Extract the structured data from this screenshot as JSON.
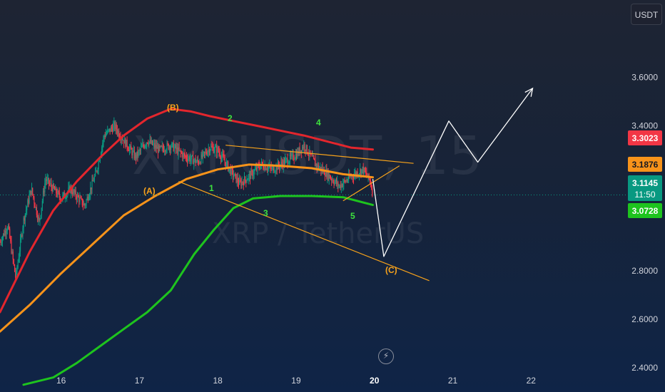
{
  "currency_button": "USDT",
  "watermark": {
    "ticker": "XRPUSDT, 15",
    "description": "XRP / TetherUS"
  },
  "flash_icon": "lightning-bolt-icon",
  "price_tags": {
    "red": {
      "label": "3.3023",
      "color": "#f23645"
    },
    "orange": {
      "label": "3.1876",
      "color": "#f7931a"
    },
    "current": {
      "label": "3.1145",
      "countdown": "11:50",
      "color": "#089981"
    },
    "green": {
      "label": "3.0728",
      "color": "#1ec41e"
    }
  },
  "wave_labels": [
    {
      "text": "(B)",
      "color": "#f7a21b"
    },
    {
      "text": "(A)",
      "color": "#f7a21b"
    },
    {
      "text": "(C)",
      "color": "#f7a21b"
    },
    {
      "text": "1",
      "color": "#3ee23e"
    },
    {
      "text": "2",
      "color": "#3ee23e"
    },
    {
      "text": "3",
      "color": "#3ee23e"
    },
    {
      "text": "4",
      "color": "#3ee23e"
    },
    {
      "text": "5",
      "color": "#3ee23e"
    }
  ],
  "chart_data": {
    "type": "candlestick",
    "title": "",
    "symbol": "XRPUSDT",
    "interval": "15",
    "ylim": [
      2.3,
      3.92
    ],
    "y_ticks": [
      "3.6000",
      "3.4000",
      "2.8000",
      "2.6000",
      "2.4000"
    ],
    "x_ticks": [
      {
        "label": "16",
        "day": 16,
        "bold": false
      },
      {
        "label": "17",
        "day": 17,
        "bold": false
      },
      {
        "label": "18",
        "day": 18,
        "bold": false
      },
      {
        "label": "19",
        "day": 19,
        "bold": false
      },
      {
        "label": "20",
        "day": 20,
        "bold": true
      },
      {
        "label": "21",
        "day": 21,
        "bold": false
      },
      {
        "label": "22",
        "day": 22,
        "bold": false
      }
    ],
    "xlim": [
      15.22,
      23.2
    ],
    "price_anchors": [
      [
        15.22,
        2.92
      ],
      [
        15.32,
        2.99
      ],
      [
        15.42,
        2.77
      ],
      [
        15.52,
        3.01
      ],
      [
        15.62,
        3.14
      ],
      [
        15.72,
        3.0
      ],
      [
        15.8,
        3.18
      ],
      [
        15.9,
        3.14
      ],
      [
        16.0,
        3.1
      ],
      [
        16.12,
        3.14
      ],
      [
        16.3,
        3.07
      ],
      [
        16.45,
        3.21
      ],
      [
        16.55,
        3.36
      ],
      [
        16.68,
        3.4
      ],
      [
        16.8,
        3.34
      ],
      [
        16.95,
        3.27
      ],
      [
        17.1,
        3.34
      ],
      [
        17.25,
        3.3
      ],
      [
        17.4,
        3.32
      ],
      [
        17.6,
        3.27
      ],
      [
        17.75,
        3.25
      ],
      [
        17.9,
        3.31
      ],
      [
        18.0,
        3.3
      ],
      [
        18.15,
        3.22
      ],
      [
        18.28,
        3.16
      ],
      [
        18.4,
        3.19
      ],
      [
        18.55,
        3.24
      ],
      [
        18.7,
        3.22
      ],
      [
        18.85,
        3.25
      ],
      [
        19.0,
        3.28
      ],
      [
        19.1,
        3.32
      ],
      [
        19.25,
        3.24
      ],
      [
        19.4,
        3.2
      ],
      [
        19.55,
        3.15
      ],
      [
        19.7,
        3.19
      ],
      [
        19.85,
        3.22
      ],
      [
        19.95,
        3.17
      ],
      [
        19.98,
        3.1145
      ]
    ],
    "series": [
      {
        "name": "",
        "color": "#e3262d",
        "points": [
          [
            15.22,
            2.63
          ],
          [
            15.6,
            2.88
          ],
          [
            15.9,
            3.05
          ],
          [
            16.2,
            3.17
          ],
          [
            16.5,
            3.27
          ],
          [
            16.8,
            3.36
          ],
          [
            17.1,
            3.43
          ],
          [
            17.4,
            3.47
          ],
          [
            17.65,
            3.46
          ],
          [
            17.9,
            3.44
          ],
          [
            18.2,
            3.42
          ],
          [
            18.5,
            3.4
          ],
          [
            18.8,
            3.38
          ],
          [
            19.1,
            3.36
          ],
          [
            19.4,
            3.335
          ],
          [
            19.7,
            3.31
          ],
          [
            19.98,
            3.3023
          ]
        ]
      },
      {
        "name": "",
        "color": "#f7931a",
        "points": [
          [
            15.22,
            2.55
          ],
          [
            15.6,
            2.66
          ],
          [
            16.0,
            2.79
          ],
          [
            16.4,
            2.91
          ],
          [
            16.8,
            3.03
          ],
          [
            17.2,
            3.11
          ],
          [
            17.6,
            3.18
          ],
          [
            18.0,
            3.22
          ],
          [
            18.4,
            3.24
          ],
          [
            18.8,
            3.235
          ],
          [
            19.2,
            3.225
          ],
          [
            19.6,
            3.2
          ],
          [
            19.98,
            3.1876
          ]
        ]
      },
      {
        "name": "",
        "color": "#1ec41e",
        "points": [
          [
            15.52,
            2.33
          ],
          [
            15.9,
            2.36
          ],
          [
            16.2,
            2.42
          ],
          [
            16.5,
            2.49
          ],
          [
            16.8,
            2.56
          ],
          [
            17.1,
            2.63
          ],
          [
            17.4,
            2.72
          ],
          [
            17.7,
            2.87
          ],
          [
            17.95,
            2.97
          ],
          [
            18.2,
            3.06
          ],
          [
            18.45,
            3.1
          ],
          [
            18.8,
            3.11
          ],
          [
            19.2,
            3.11
          ],
          [
            19.6,
            3.105
          ],
          [
            19.98,
            3.0728
          ]
        ]
      }
    ],
    "trendlines": [
      {
        "color": "#f7a21b",
        "points": [
          [
            18.1,
            3.32
          ],
          [
            20.5,
            3.245
          ]
        ]
      },
      {
        "color": "#f7a21b",
        "points": [
          [
            17.5,
            3.17
          ],
          [
            20.7,
            2.76
          ]
        ]
      },
      {
        "color": "#f7a21b",
        "points": [
          [
            19.6,
            3.09
          ],
          [
            20.32,
            3.235
          ]
        ]
      }
    ],
    "projection": {
      "color": "#ffffff",
      "points": [
        [
          19.98,
          3.18
        ],
        [
          20.12,
          2.86
        ],
        [
          20.95,
          3.42
        ],
        [
          21.32,
          3.25
        ],
        [
          22.02,
          3.555
        ]
      ]
    },
    "current_price": 3.1145
  }
}
